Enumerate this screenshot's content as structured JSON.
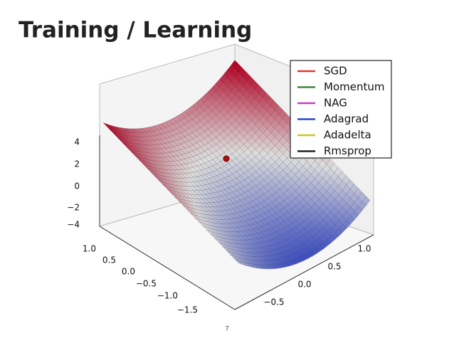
{
  "title": "Training / Learning",
  "page_number": "7",
  "figure": {
    "z_ticks": [
      "4",
      "2",
      "0",
      "−2",
      "−4"
    ],
    "x_ticks": [
      "1.0",
      "0.5",
      "0.0",
      "−0.5",
      "−1.0",
      "−1.5"
    ],
    "y_ticks": [
      "1.0",
      "0.5",
      "0.0",
      "−0.5"
    ],
    "legend": [
      {
        "name": "SGD",
        "color": "#e0392b"
      },
      {
        "name": "Momentum",
        "color": "#3a8a3a"
      },
      {
        "name": "NAG",
        "color": "#c040c0"
      },
      {
        "name": "Adagrad",
        "color": "#2a45d8"
      },
      {
        "name": "Adadelta",
        "color": "#c8c820"
      },
      {
        "name": "Rmsprop",
        "color": "#222222"
      }
    ]
  }
}
